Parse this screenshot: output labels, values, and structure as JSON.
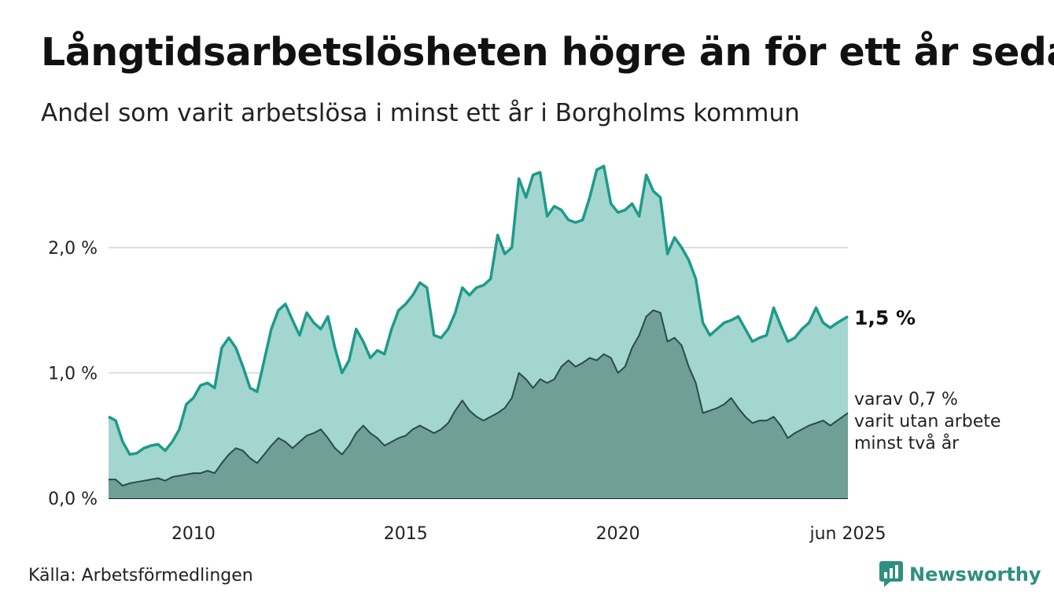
{
  "header": {
    "title": "Långtidsarbetslösheten högre än för ett år sedan",
    "subtitle": "Andel som varit arbetslösa i minst ett år i Borgholms kommun"
  },
  "footer": {
    "source": "Källa: Arbetsförmedlingen",
    "brand": "Newsworthy"
  },
  "colors": {
    "main_line": "#1e9a8a",
    "main_fill": "#a2d6cf",
    "sub_fill": "#6f9f97",
    "sub_line": "#2c4a45",
    "grid": "#dcdcdc",
    "brand": "#2f8f80"
  },
  "chart_data": {
    "type": "area",
    "title": "Långtidsarbetslösheten högre än för ett år sedan",
    "subtitle": "Andel som varit arbetslösa i minst ett år i Borgholms kommun",
    "xlabel": "",
    "ylabel": "",
    "x_range": [
      "2008-01",
      "2025-06"
    ],
    "ylim": [
      0,
      2.75
    ],
    "y_ticks": [
      {
        "value": 0,
        "label": "0,0 %"
      },
      {
        "value": 1,
        "label": "1,0 %"
      },
      {
        "value": 2,
        "label": "2,0 %"
      }
    ],
    "x_ticks": [
      {
        "date": "2010-01",
        "label": "2010"
      },
      {
        "date": "2015-01",
        "label": "2015"
      },
      {
        "date": "2020-01",
        "label": "2020"
      },
      {
        "date": "2025-06",
        "label": "jun 2025"
      }
    ],
    "grid": true,
    "series": [
      {
        "points": [
          [
            "2008-01",
            0.65
          ],
          [
            "2008-03",
            0.62
          ],
          [
            "2008-05",
            0.45
          ],
          [
            "2008-07",
            0.35
          ],
          [
            "2008-09",
            0.36
          ],
          [
            "2008-11",
            0.4
          ],
          [
            "2009-01",
            0.42
          ],
          [
            "2009-03",
            0.43
          ],
          [
            "2009-05",
            0.38
          ],
          [
            "2009-07",
            0.45
          ],
          [
            "2009-09",
            0.55
          ],
          [
            "2009-11",
            0.75
          ],
          [
            "2010-01",
            0.8
          ],
          [
            "2010-03",
            0.9
          ],
          [
            "2010-05",
            0.92
          ],
          [
            "2010-07",
            0.88
          ],
          [
            "2010-09",
            1.2
          ],
          [
            "2010-11",
            1.28
          ],
          [
            "2011-01",
            1.2
          ],
          [
            "2011-03",
            1.05
          ],
          [
            "2011-05",
            0.88
          ],
          [
            "2011-07",
            0.85
          ],
          [
            "2011-09",
            1.1
          ],
          [
            "2011-11",
            1.35
          ],
          [
            "2012-01",
            1.5
          ],
          [
            "2012-03",
            1.55
          ],
          [
            "2012-05",
            1.42
          ],
          [
            "2012-07",
            1.3
          ],
          [
            "2012-09",
            1.48
          ],
          [
            "2012-11",
            1.4
          ],
          [
            "2013-01",
            1.35
          ],
          [
            "2013-03",
            1.45
          ],
          [
            "2013-05",
            1.2
          ],
          [
            "2013-07",
            1.0
          ],
          [
            "2013-09",
            1.1
          ],
          [
            "2013-11",
            1.35
          ],
          [
            "2014-01",
            1.25
          ],
          [
            "2014-03",
            1.12
          ],
          [
            "2014-05",
            1.18
          ],
          [
            "2014-07",
            1.15
          ],
          [
            "2014-09",
            1.35
          ],
          [
            "2014-11",
            1.5
          ],
          [
            "2015-01",
            1.55
          ],
          [
            "2015-03",
            1.62
          ],
          [
            "2015-05",
            1.72
          ],
          [
            "2015-07",
            1.68
          ],
          [
            "2015-09",
            1.3
          ],
          [
            "2015-11",
            1.28
          ],
          [
            "2016-01",
            1.35
          ],
          [
            "2016-03",
            1.48
          ],
          [
            "2016-05",
            1.68
          ],
          [
            "2016-07",
            1.62
          ],
          [
            "2016-09",
            1.68
          ],
          [
            "2016-11",
            1.7
          ],
          [
            "2017-01",
            1.75
          ],
          [
            "2017-03",
            2.1
          ],
          [
            "2017-05",
            1.95
          ],
          [
            "2017-07",
            2.0
          ],
          [
            "2017-09",
            2.55
          ],
          [
            "2017-11",
            2.4
          ],
          [
            "2018-01",
            2.58
          ],
          [
            "2018-03",
            2.6
          ],
          [
            "2018-05",
            2.25
          ],
          [
            "2018-07",
            2.33
          ],
          [
            "2018-09",
            2.3
          ],
          [
            "2018-11",
            2.22
          ],
          [
            "2019-01",
            2.2
          ],
          [
            "2019-03",
            2.22
          ],
          [
            "2019-05",
            2.4
          ],
          [
            "2019-07",
            2.62
          ],
          [
            "2019-09",
            2.65
          ],
          [
            "2019-11",
            2.35
          ],
          [
            "2020-01",
            2.28
          ],
          [
            "2020-03",
            2.3
          ],
          [
            "2020-05",
            2.35
          ],
          [
            "2020-07",
            2.25
          ],
          [
            "2020-09",
            2.58
          ],
          [
            "2020-11",
            2.45
          ],
          [
            "2021-01",
            2.4
          ],
          [
            "2021-03",
            1.95
          ],
          [
            "2021-05",
            2.08
          ],
          [
            "2021-07",
            2.0
          ],
          [
            "2021-09",
            1.9
          ],
          [
            "2021-11",
            1.75
          ],
          [
            "2022-01",
            1.4
          ],
          [
            "2022-03",
            1.3
          ],
          [
            "2022-05",
            1.35
          ],
          [
            "2022-07",
            1.4
          ],
          [
            "2022-09",
            1.42
          ],
          [
            "2022-11",
            1.45
          ],
          [
            "2023-01",
            1.35
          ],
          [
            "2023-03",
            1.25
          ],
          [
            "2023-05",
            1.28
          ],
          [
            "2023-07",
            1.3
          ],
          [
            "2023-09",
            1.52
          ],
          [
            "2023-11",
            1.38
          ],
          [
            "2024-01",
            1.25
          ],
          [
            "2024-03",
            1.28
          ],
          [
            "2024-05",
            1.35
          ],
          [
            "2024-07",
            1.4
          ],
          [
            "2024-09",
            1.52
          ],
          [
            "2024-11",
            1.4
          ],
          [
            "2025-01",
            1.36
          ],
          [
            "2025-03",
            1.4
          ],
          [
            "2025-06",
            1.45
          ]
        ],
        "end_label": "1,5 %"
      },
      {
        "points": [
          [
            "2008-01",
            0.15
          ],
          [
            "2008-03",
            0.15
          ],
          [
            "2008-05",
            0.1
          ],
          [
            "2008-07",
            0.12
          ],
          [
            "2008-09",
            0.13
          ],
          [
            "2008-11",
            0.14
          ],
          [
            "2009-01",
            0.15
          ],
          [
            "2009-03",
            0.16
          ],
          [
            "2009-05",
            0.14
          ],
          [
            "2009-07",
            0.17
          ],
          [
            "2009-09",
            0.18
          ],
          [
            "2009-11",
            0.19
          ],
          [
            "2010-01",
            0.2
          ],
          [
            "2010-03",
            0.2
          ],
          [
            "2010-05",
            0.22
          ],
          [
            "2010-07",
            0.2
          ],
          [
            "2010-09",
            0.28
          ],
          [
            "2010-11",
            0.35
          ],
          [
            "2011-01",
            0.4
          ],
          [
            "2011-03",
            0.38
          ],
          [
            "2011-05",
            0.32
          ],
          [
            "2011-07",
            0.28
          ],
          [
            "2011-09",
            0.35
          ],
          [
            "2011-11",
            0.42
          ],
          [
            "2012-01",
            0.48
          ],
          [
            "2012-03",
            0.45
          ],
          [
            "2012-05",
            0.4
          ],
          [
            "2012-07",
            0.45
          ],
          [
            "2012-09",
            0.5
          ],
          [
            "2012-11",
            0.52
          ],
          [
            "2013-01",
            0.55
          ],
          [
            "2013-03",
            0.48
          ],
          [
            "2013-05",
            0.4
          ],
          [
            "2013-07",
            0.35
          ],
          [
            "2013-09",
            0.42
          ],
          [
            "2013-11",
            0.52
          ],
          [
            "2014-01",
            0.58
          ],
          [
            "2014-03",
            0.52
          ],
          [
            "2014-05",
            0.48
          ],
          [
            "2014-07",
            0.42
          ],
          [
            "2014-09",
            0.45
          ],
          [
            "2014-11",
            0.48
          ],
          [
            "2015-01",
            0.5
          ],
          [
            "2015-03",
            0.55
          ],
          [
            "2015-05",
            0.58
          ],
          [
            "2015-07",
            0.55
          ],
          [
            "2015-09",
            0.52
          ],
          [
            "2015-11",
            0.55
          ],
          [
            "2016-01",
            0.6
          ],
          [
            "2016-03",
            0.7
          ],
          [
            "2016-05",
            0.78
          ],
          [
            "2016-07",
            0.7
          ],
          [
            "2016-09",
            0.65
          ],
          [
            "2016-11",
            0.62
          ],
          [
            "2017-01",
            0.65
          ],
          [
            "2017-03",
            0.68
          ],
          [
            "2017-05",
            0.72
          ],
          [
            "2017-07",
            0.8
          ],
          [
            "2017-09",
            1.0
          ],
          [
            "2017-11",
            0.95
          ],
          [
            "2018-01",
            0.88
          ],
          [
            "2018-03",
            0.95
          ],
          [
            "2018-05",
            0.92
          ],
          [
            "2018-07",
            0.95
          ],
          [
            "2018-09",
            1.05
          ],
          [
            "2018-11",
            1.1
          ],
          [
            "2019-01",
            1.05
          ],
          [
            "2019-03",
            1.08
          ],
          [
            "2019-05",
            1.12
          ],
          [
            "2019-07",
            1.1
          ],
          [
            "2019-09",
            1.15
          ],
          [
            "2019-11",
            1.12
          ],
          [
            "2020-01",
            1.0
          ],
          [
            "2020-03",
            1.05
          ],
          [
            "2020-05",
            1.2
          ],
          [
            "2020-07",
            1.3
          ],
          [
            "2020-09",
            1.45
          ],
          [
            "2020-11",
            1.5
          ],
          [
            "2021-01",
            1.48
          ],
          [
            "2021-03",
            1.25
          ],
          [
            "2021-05",
            1.28
          ],
          [
            "2021-07",
            1.22
          ],
          [
            "2021-09",
            1.05
          ],
          [
            "2021-11",
            0.92
          ],
          [
            "2022-01",
            0.68
          ],
          [
            "2022-03",
            0.7
          ],
          [
            "2022-05",
            0.72
          ],
          [
            "2022-07",
            0.75
          ],
          [
            "2022-09",
            0.8
          ],
          [
            "2022-11",
            0.72
          ],
          [
            "2023-01",
            0.65
          ],
          [
            "2023-03",
            0.6
          ],
          [
            "2023-05",
            0.62
          ],
          [
            "2023-07",
            0.62
          ],
          [
            "2023-09",
            0.65
          ],
          [
            "2023-11",
            0.58
          ],
          [
            "2024-01",
            0.48
          ],
          [
            "2024-03",
            0.52
          ],
          [
            "2024-05",
            0.55
          ],
          [
            "2024-07",
            0.58
          ],
          [
            "2024-09",
            0.6
          ],
          [
            "2024-11",
            0.62
          ],
          [
            "2025-01",
            0.58
          ],
          [
            "2025-03",
            0.62
          ],
          [
            "2025-06",
            0.68
          ]
        ],
        "end_label_lines": [
          "varav 0,7 %",
          "varit utan arbete",
          "minst två år"
        ]
      }
    ]
  }
}
